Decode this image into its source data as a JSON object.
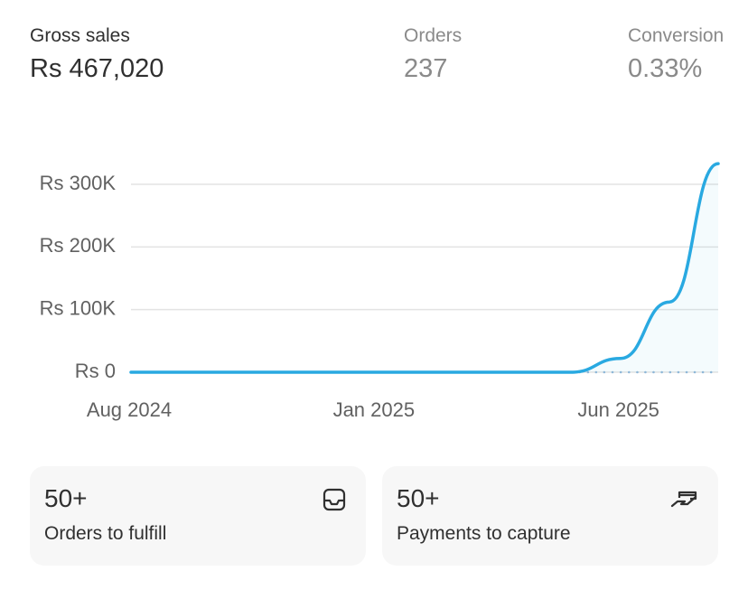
{
  "metrics": [
    {
      "label": "Gross sales",
      "value": "Rs 467,020"
    },
    {
      "label": "Orders",
      "value": "237"
    },
    {
      "label": "Conversion",
      "value": "0.33%"
    }
  ],
  "chart_data": {
    "type": "line",
    "categories": [
      "Aug 2024",
      null,
      null,
      null,
      null,
      "Jan 2025",
      null,
      null,
      null,
      null,
      "Jun 2025",
      null,
      null
    ],
    "series": [
      {
        "color": "#29a9e1",
        "values": [
          0,
          0,
          0,
          0,
          0,
          0,
          0,
          0,
          0,
          0,
          22000,
          112000,
          333000
        ]
      },
      {
        "color": "#8fb8d8",
        "dashed": true,
        "values": [
          null,
          null,
          null,
          null,
          null,
          null,
          null,
          null,
          null,
          0,
          0,
          0,
          0
        ]
      }
    ],
    "ylim": [
      0,
      340000
    ],
    "yticks": [
      {
        "value": 0,
        "label": "Rs 0"
      },
      {
        "value": 100000,
        "label": "Rs 100K"
      },
      {
        "value": 200000,
        "label": "Rs 200K"
      },
      {
        "value": 300000,
        "label": "Rs 300K"
      }
    ],
    "grid": true
  },
  "cards": [
    {
      "count": "50+",
      "label": "Orders to fulfill"
    },
    {
      "count": "50+",
      "label": "Payments to capture"
    }
  ]
}
